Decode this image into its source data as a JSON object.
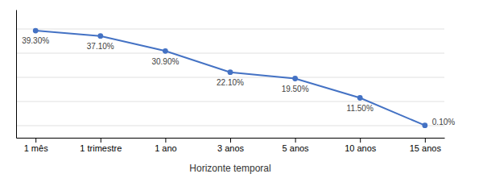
{
  "chart_data": {
    "type": "line",
    "xlabel": "Horizonte temporal",
    "categories": [
      "1 mês",
      "1 trimestre",
      "1 ano",
      "3 anos",
      "5 anos",
      "10 anos",
      "15 anos"
    ],
    "values": [
      39.3,
      37.1,
      30.9,
      22.1,
      19.5,
      11.5,
      0.1
    ],
    "value_labels": [
      "39.30%",
      "37.10%",
      "30.90%",
      "22.10%",
      "19.50%",
      "11.50%",
      "0.10%"
    ],
    "color": "#4472C4",
    "marker": "o",
    "ylim": [
      -5,
      48
    ],
    "yticks": [
      0,
      10,
      20,
      30,
      40
    ],
    "grid": true,
    "data_labels": true,
    "tick_labels": "x"
  }
}
